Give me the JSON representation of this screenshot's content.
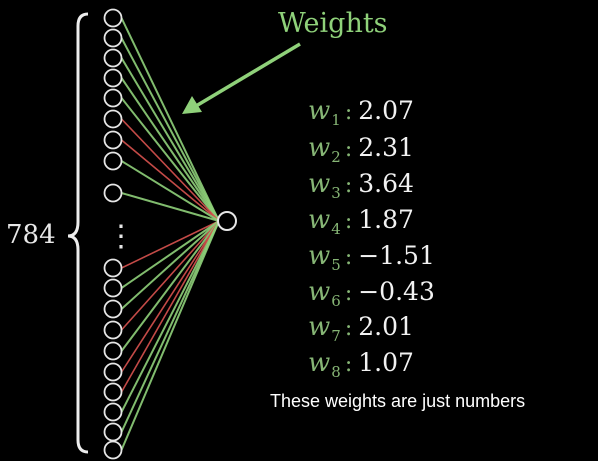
{
  "diagram": {
    "title": "Weights",
    "input_count_label": "784",
    "ellipsis": "⋮",
    "weights": [
      {
        "name": "w",
        "sub": "1",
        "value": "2.07"
      },
      {
        "name": "w",
        "sub": "2",
        "value": "2.31"
      },
      {
        "name": "w",
        "sub": "3",
        "value": "3.64"
      },
      {
        "name": "w",
        "sub": "4",
        "value": "1.87"
      },
      {
        "name": "w",
        "sub": "5",
        "value": "−1.51"
      },
      {
        "name": "w",
        "sub": "6",
        "value": "−0.43"
      },
      {
        "name": "w",
        "sub": "7",
        "value": "2.01"
      },
      {
        "name": "w",
        "sub": "8",
        "value": "1.07"
      }
    ],
    "caption": "These weights are just numbers"
  },
  "colors": {
    "background": "#000000",
    "neuron_stroke": "#e6e6e6",
    "positive_weight": "#8fd17a",
    "negative_weight": "#d9534f",
    "label_green": "#86b575"
  },
  "connections": {
    "top": [
      "pos",
      "pos",
      "pos",
      "pos",
      "pos",
      "neg",
      "neg",
      "pos",
      "pos"
    ],
    "bottom": [
      "neg",
      "pos",
      "pos",
      "neg",
      "pos",
      "neg",
      "neg",
      "pos",
      "pos",
      "pos"
    ]
  }
}
